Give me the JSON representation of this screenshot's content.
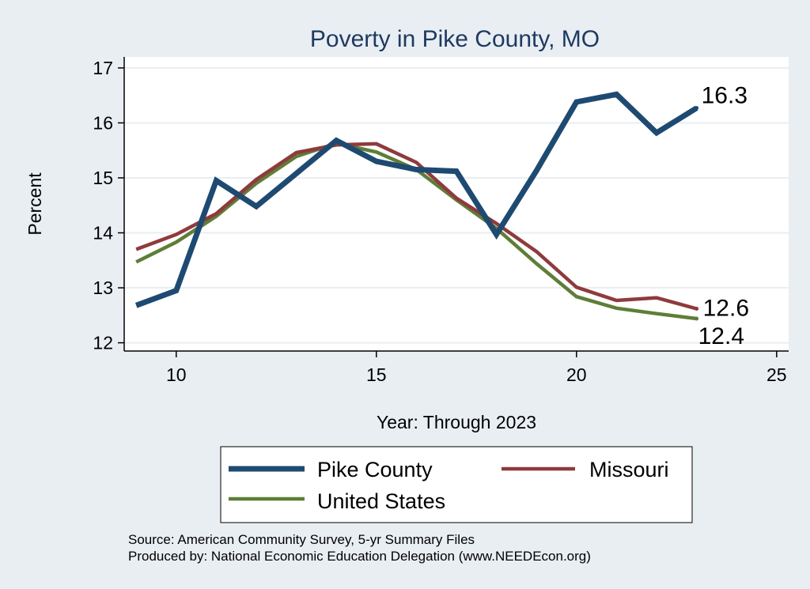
{
  "chart_data": {
    "type": "line",
    "title": "Poverty in Pike County, MO",
    "xlabel": "Year: Through 2023",
    "ylabel": "Percent",
    "xlim": [
      8.7,
      25.3
    ],
    "ylim": [
      11.85,
      17.2
    ],
    "xticks": [
      10,
      15,
      20,
      25
    ],
    "yticks": [
      12,
      13,
      14,
      15,
      16,
      17
    ],
    "grid": true,
    "x": [
      9,
      10,
      11,
      12,
      13,
      14,
      15,
      16,
      17,
      18,
      19,
      20,
      21,
      22,
      23
    ],
    "series": [
      {
        "name": "Pike County",
        "color": "#1e4a72",
        "values": [
          12.68,
          12.95,
          14.95,
          14.48,
          15.08,
          15.68,
          15.3,
          15.15,
          15.12,
          13.97,
          15.13,
          16.38,
          16.52,
          15.82,
          16.27
        ],
        "end_label": "16.3"
      },
      {
        "name": "Missouri",
        "color": "#8f3a3d",
        "values": [
          13.7,
          13.97,
          14.35,
          14.97,
          15.46,
          15.6,
          15.62,
          15.28,
          14.63,
          14.17,
          13.66,
          13.01,
          12.77,
          12.82,
          12.62
        ],
        "end_label": "12.6"
      },
      {
        "name": "United States",
        "color": "#5e7e37",
        "values": [
          13.47,
          13.83,
          14.3,
          14.9,
          15.39,
          15.63,
          15.47,
          15.15,
          14.6,
          14.08,
          13.44,
          12.84,
          12.63,
          12.53,
          12.44
        ],
        "end_label": "12.4"
      }
    ],
    "legend": {
      "position": "bottom",
      "entries": [
        "Pike County",
        "Missouri",
        "United States"
      ]
    }
  },
  "source_line": "Source: American Community Survey, 5-yr Summary Files",
  "produced_line": "Produced by: National Economic Education Delegation (www.NEEDEcon.org)"
}
